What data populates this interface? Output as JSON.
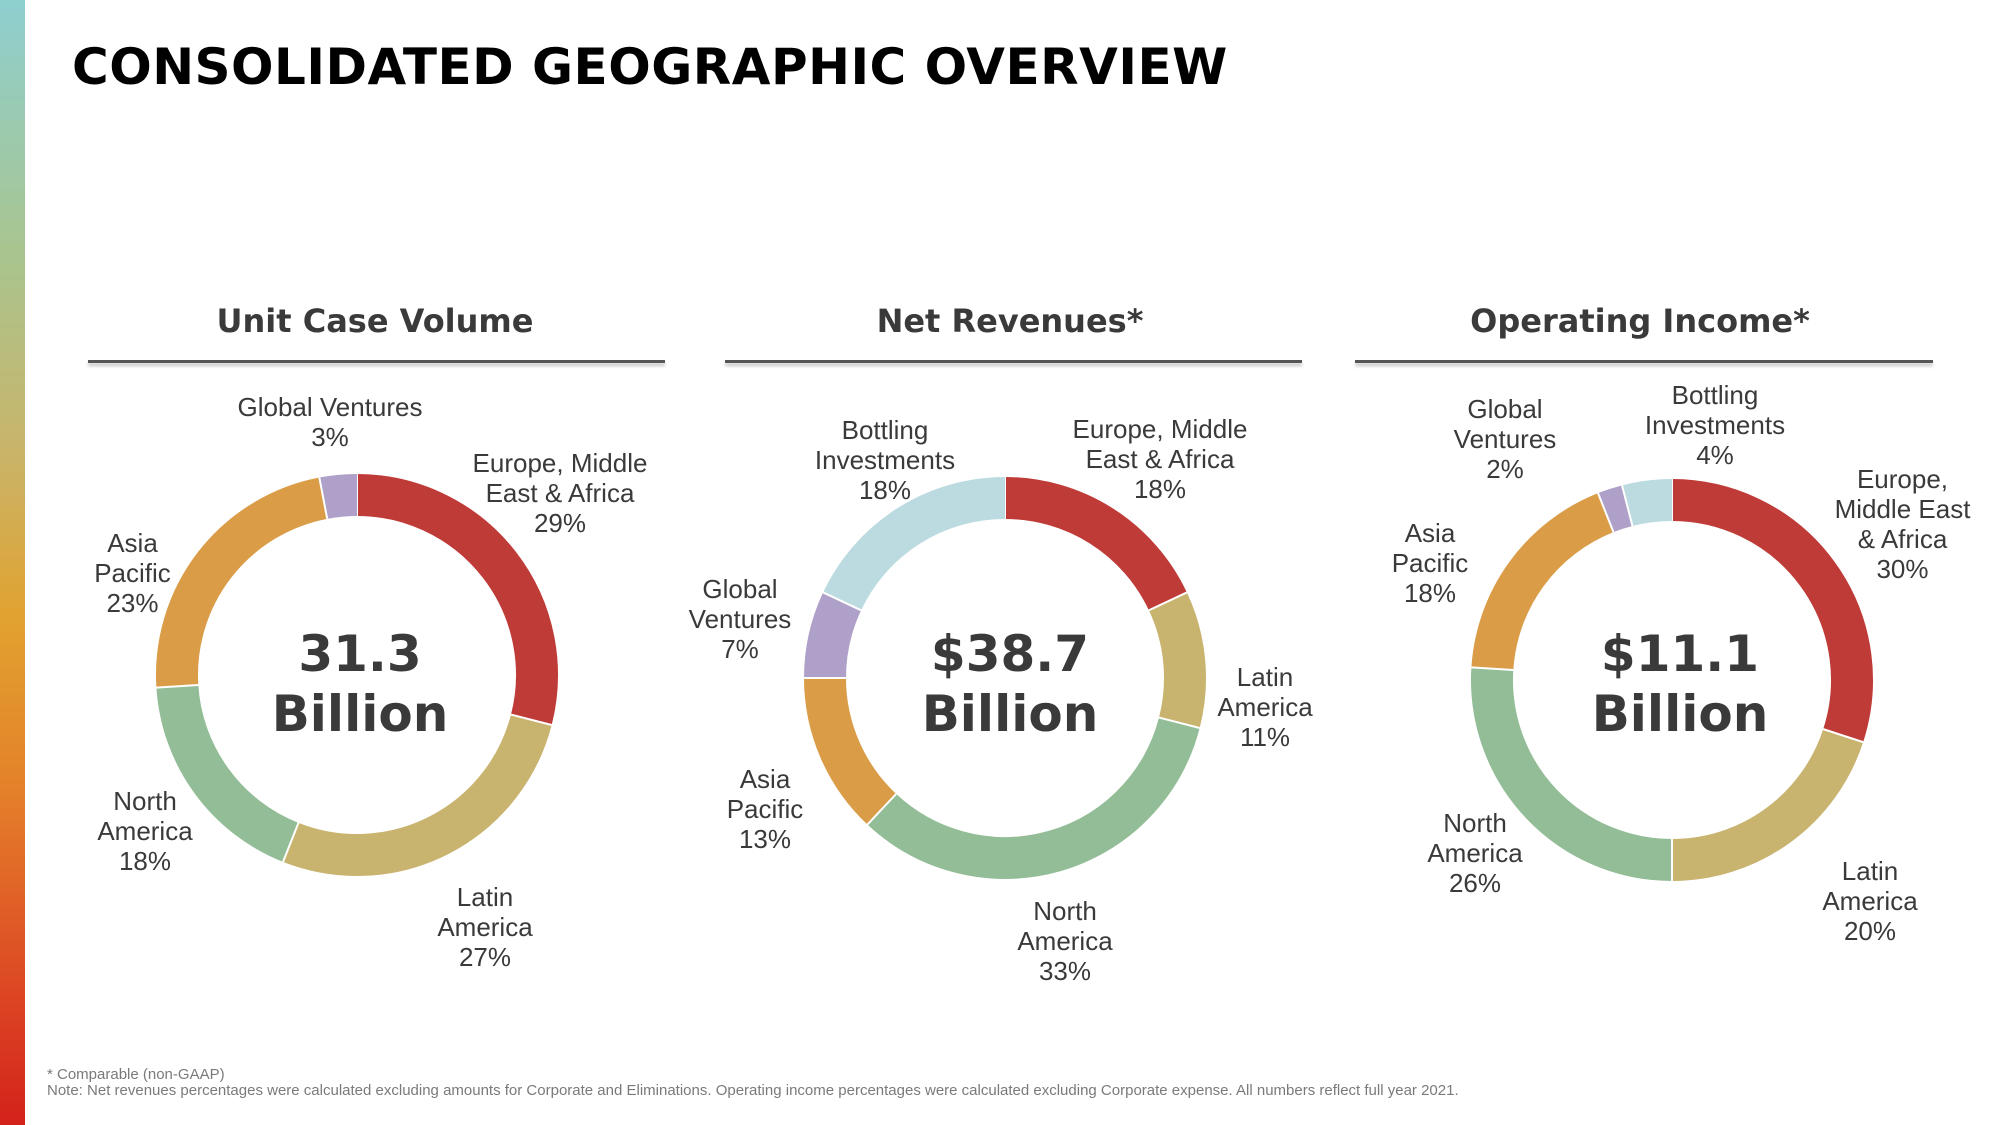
{
  "title": "CONSOLIDATED GEOGRAPHIC OVERVIEW",
  "colors": {
    "europe_middle_east_africa": "#bf3b38",
    "latin_america": "#c8b36f",
    "north_america": "#92bd96",
    "asia_pacific": "#da9c47",
    "global_ventures": "#aea0c8",
    "bottling_investments": "#bcdbe0"
  },
  "chart_data": [
    {
      "type": "pie",
      "title": "Unit Case Volume",
      "center_value": "31.3",
      "center_unit": "Billion",
      "slices": [
        {
          "label": "Europe, Middle East & Africa",
          "value": 29,
          "display": "29%",
          "color": "#bf3b38"
        },
        {
          "label": "Latin America",
          "value": 27,
          "display": "27%",
          "color": "#c8b36f"
        },
        {
          "label": "North America",
          "value": 18,
          "display": "18%",
          "color": "#92bd96"
        },
        {
          "label": "Asia Pacific",
          "value": 23,
          "display": "23%",
          "color": "#da9c47"
        },
        {
          "label": "Global Ventures",
          "value": 3,
          "display": "3%",
          "color": "#aea0c8"
        }
      ]
    },
    {
      "type": "pie",
      "title": "Net Revenues*",
      "center_value": "$38.7",
      "center_unit": "Billion",
      "slices": [
        {
          "label": "Europe, Middle East & Africa",
          "value": 18,
          "display": "18%",
          "color": "#bf3b38"
        },
        {
          "label": "Latin America",
          "value": 11,
          "display": "11%",
          "color": "#c8b36f"
        },
        {
          "label": "North America",
          "value": 33,
          "display": "33%",
          "color": "#92bd96"
        },
        {
          "label": "Asia Pacific",
          "value": 13,
          "display": "13%",
          "color": "#da9c47"
        },
        {
          "label": "Global Ventures",
          "value": 7,
          "display": "7%",
          "color": "#aea0c8"
        },
        {
          "label": "Bottling Investments",
          "value": 18,
          "display": "18%",
          "color": "#bcdbe0"
        }
      ]
    },
    {
      "type": "pie",
      "title": "Operating Income*",
      "center_value": "$11.1",
      "center_unit": "Billion",
      "slices": [
        {
          "label": "Europe, Middle East & Africa",
          "value": 30,
          "display": "30%",
          "color": "#bf3b38"
        },
        {
          "label": "Latin America",
          "value": 20,
          "display": "20%",
          "color": "#c8b36f"
        },
        {
          "label": "North America",
          "value": 26,
          "display": "26%",
          "color": "#92bd96"
        },
        {
          "label": "Asia Pacific",
          "value": 18,
          "display": "18%",
          "color": "#da9c47"
        },
        {
          "label": "Global Ventures",
          "value": 2,
          "display": "2%",
          "color": "#aea0c8"
        },
        {
          "label": "Bottling Investments",
          "value": 4,
          "display": "4%",
          "color": "#bcdbe0"
        }
      ]
    }
  ],
  "labels": {
    "c1": {
      "emea": "Europe, Middle\nEast & Africa\n29%",
      "latam": "Latin\nAmerica\n27%",
      "na": "North\nAmerica\n18%",
      "apac": "Asia\nPacific\n23%",
      "gv": "Global Ventures\n3%"
    },
    "c2": {
      "emea": "Europe, Middle\nEast & Africa\n18%",
      "latam": "Latin\nAmerica\n11%",
      "na": "North\nAmerica\n33%",
      "apac": "Asia\nPacific\n13%",
      "gv": "Global\nVentures\n7%",
      "bi": "Bottling\nInvestments\n18%"
    },
    "c3": {
      "emea": "Europe,\nMiddle East\n& Africa\n30%",
      "latam": "Latin\nAmerica\n20%",
      "na": "North\nAmerica\n26%",
      "apac": "Asia\nPacific\n18%",
      "gv": "Global\nVentures\n2%",
      "bi": "Bottling\nInvestments\n4%"
    }
  },
  "footnotes": {
    "line1": "* Comparable (non-GAAP)",
    "line2": "Note: Net revenues percentages were calculated excluding amounts for Corporate and Eliminations. Operating income percentages were calculated excluding Corporate expense. All numbers reflect full year 2021."
  }
}
